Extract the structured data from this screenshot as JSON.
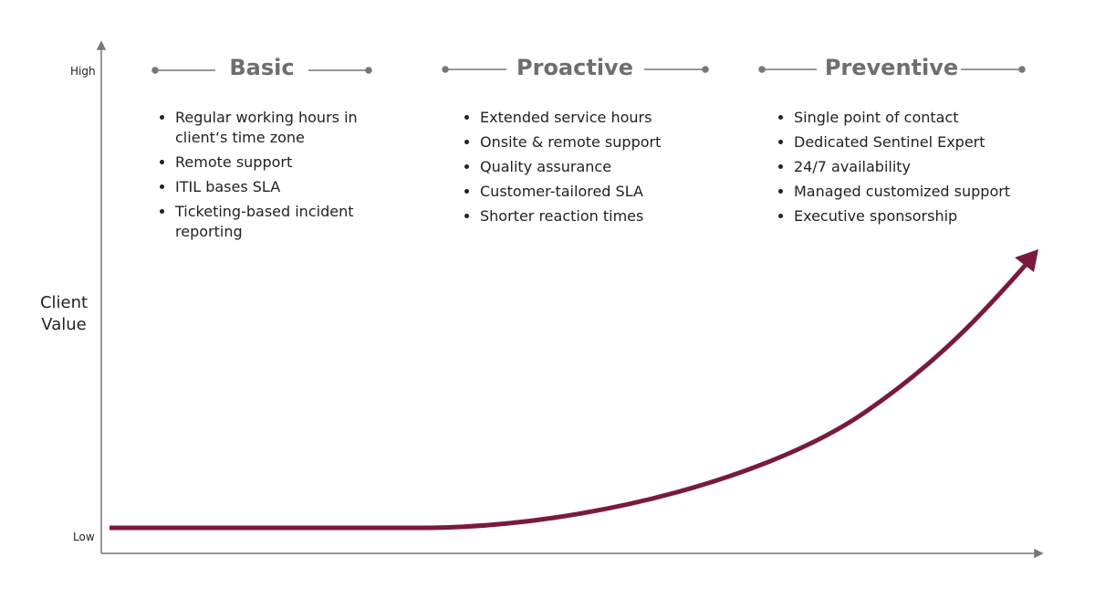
{
  "axis": {
    "y_label": "Client Value",
    "y_high": "High",
    "y_low": "Low"
  },
  "columns": [
    {
      "title": "Basic",
      "items": [
        "Regular working hours in client‘s time zone",
        "Remote support",
        "ITIL bases SLA",
        "Ticketing-based incident reporting"
      ]
    },
    {
      "title": "Proactive",
      "items": [
        "Extended service hours",
        "Onsite & remote support",
        "Quality assurance",
        "Customer-tailored SLA",
        "Shorter reaction times"
      ]
    },
    {
      "title": "Preventive",
      "items": [
        "Single point of contact",
        "Dedicated Sentinel Expert",
        "24/7 availability",
        "Managed customized support",
        "Executive sponsorship"
      ]
    }
  ]
}
